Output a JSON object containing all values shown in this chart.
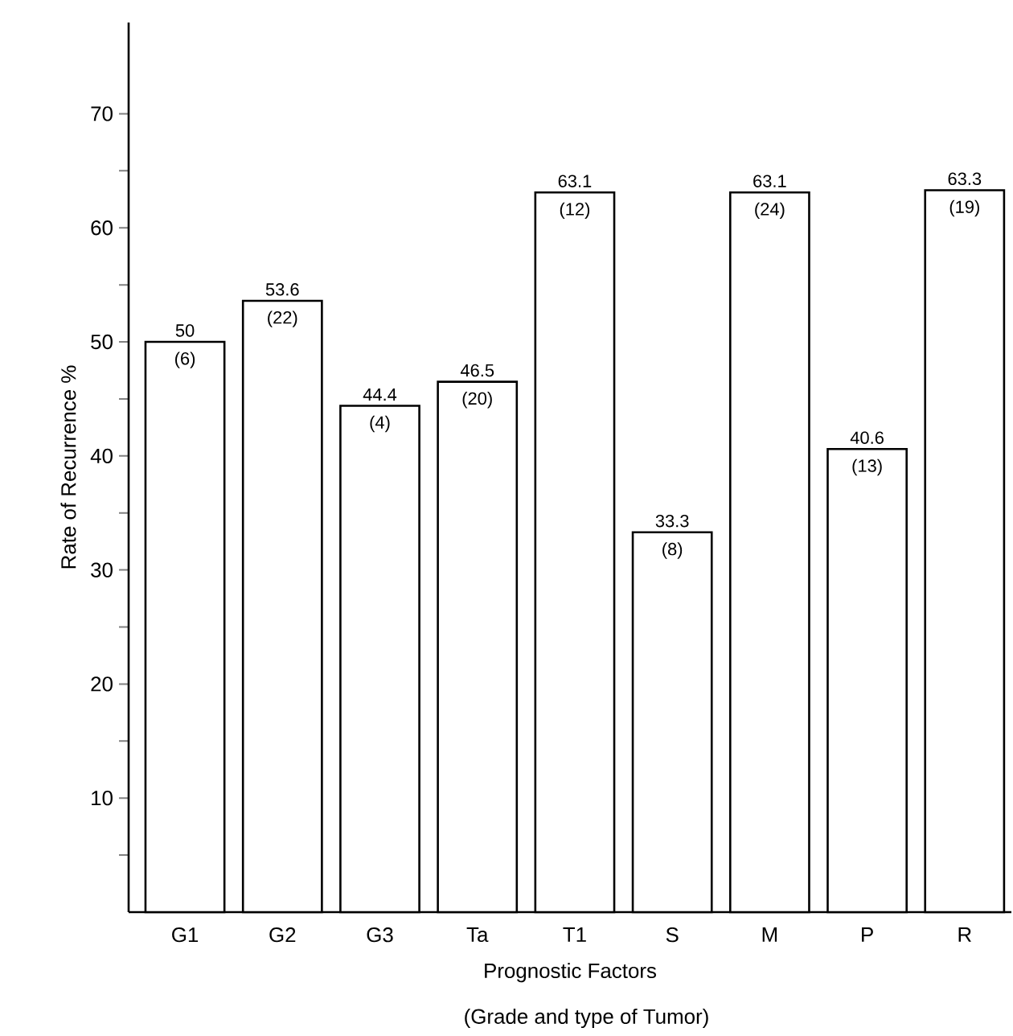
{
  "chart_data": {
    "type": "bar",
    "xlabel": "Prognostic Factors",
    "ylabel": "Rate of Recurrence %",
    "categories": [
      "G1",
      "G2",
      "G3",
      "Ta",
      "T1",
      "S",
      "M",
      "P",
      "R"
    ],
    "values": [
      50,
      53.6,
      44.4,
      46.5,
      63.1,
      33.3,
      63.1,
      40.6,
      63.3
    ],
    "value_labels": [
      "50",
      "53.6",
      "44.4",
      "46.5",
      "63.1",
      "33.3",
      "63.1",
      "40.6",
      "63.3"
    ],
    "color": "#ffffff",
    "ylim": [
      0,
      78
    ],
    "yticks": [
      {
        "value": 5,
        "label": null
      },
      10,
      {
        "value": 15,
        "label": null
      },
      20,
      {
        "value": 25,
        "label": null
      },
      30,
      {
        "value": 35,
        "label": null
      },
      40,
      {
        "value": 45,
        "label": null
      },
      50,
      {
        "value": 55,
        "label": null
      },
      60,
      {
        "value": 65,
        "label": null
      },
      70
    ],
    "annotations": [
      {
        "text": "(6)",
        "x": "G1",
        "y": 50
      },
      {
        "text": "(22)",
        "x": "G2",
        "y": 53.6
      },
      {
        "text": "(4)",
        "x": "G3",
        "y": 44.4
      },
      {
        "text": "(20)",
        "x": "Ta",
        "y": 46.5
      },
      {
        "text": "(12)",
        "x": "T1",
        "y": 63.1
      },
      {
        "text": "(8)",
        "x": "S",
        "y": 33.3
      },
      {
        "text": "(24)",
        "x": "M",
        "y": 63.1
      },
      {
        "text": "(13)",
        "x": "P",
        "y": 40.6
      },
      {
        "text": "(19)",
        "x": "R",
        "y": 63.3
      },
      "(Grade and type of Tumor)"
    ]
  }
}
